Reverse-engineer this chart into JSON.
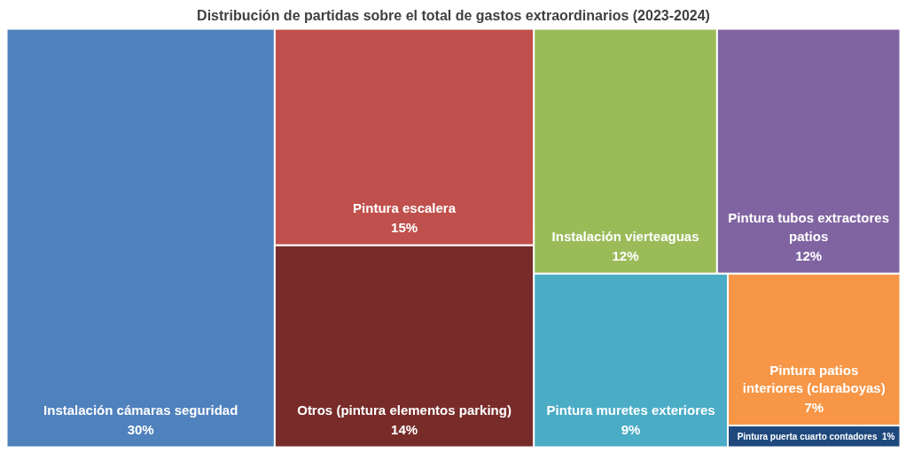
{
  "chart_data": {
    "type": "other",
    "title": "Distribución de partidas sobre el total de gastos extraordinarios (2023-2024)",
    "categories": [
      "Instalación cámaras seguridad",
      "Pintura escalera",
      "Otros (pintura elementos parking)",
      "Instalación vierteaguas",
      "Pintura tubos extractores patios",
      "Pintura muretes exteriores",
      "Pintura patios interiores (claraboyas)",
      "Pintura puerta cuarto contadores"
    ],
    "values": [
      30,
      15,
      14,
      12,
      12,
      9,
      7,
      1
    ],
    "value_labels": [
      "30%",
      "15%",
      "14%",
      "12%",
      "12%",
      "9%",
      "7%",
      "1%"
    ],
    "colors": [
      "#4f81bd",
      "#c0504d",
      "#772c2a",
      "#9bbb59",
      "#8064a2",
      "#4bacc6",
      "#f79646",
      "#1f497d"
    ]
  }
}
